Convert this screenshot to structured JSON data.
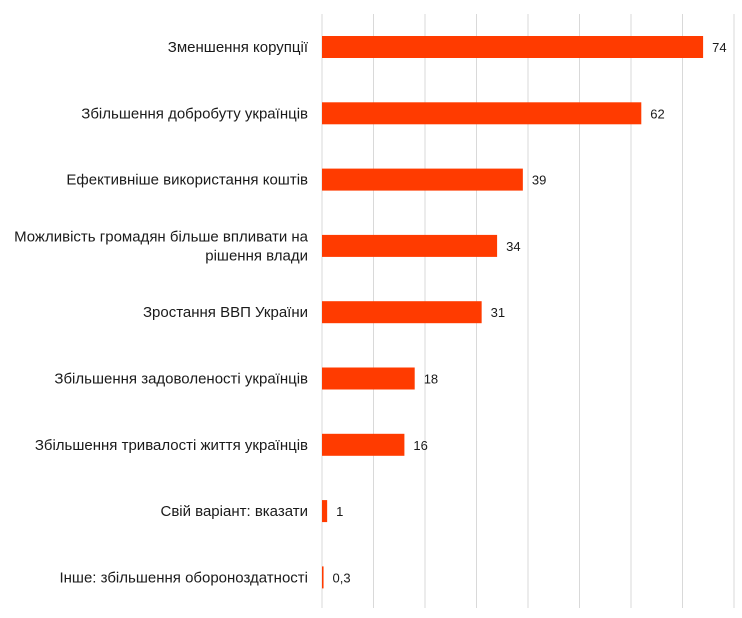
{
  "chart_data": {
    "type": "bar",
    "orientation": "horizontal",
    "categories": [
      [
        "Зменшення корупції"
      ],
      [
        "Збільшення добробуту українців"
      ],
      [
        "Ефективніше використання коштів"
      ],
      [
        "Можливість громадян більше впливати на",
        "рішення влади"
      ],
      [
        "Зростання ВВП України"
      ],
      [
        "Збільшення задоволеності українців"
      ],
      [
        "Збільшення тривалості життя українців"
      ],
      [
        "Свій варіант: вказати"
      ],
      [
        "Інше: збільшення обороноздатності"
      ]
    ],
    "values": [
      74,
      62,
      39,
      34,
      31,
      18,
      16,
      1,
      0.3
    ],
    "value_labels": [
      "74",
      "62",
      "39",
      "34",
      "31",
      "18",
      "16",
      "1",
      "0,3"
    ],
    "title": "",
    "xlabel": "",
    "ylabel": "",
    "xlim": [
      0,
      80
    ],
    "grid": "vertical",
    "legend": "none",
    "colors": {
      "bar": "#ff3b00",
      "grid": "#d9d9d9",
      "text": "#1a1a1a"
    }
  }
}
